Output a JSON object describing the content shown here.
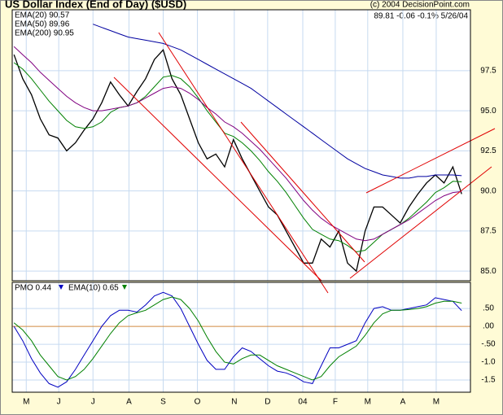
{
  "chart_data": [
    {
      "type": "line",
      "title": "US Dollar Index (End of Day) ($USD)",
      "source": "(c) 2004 DecisionPoint.com",
      "header": "89.81  -0.06  -0.1%  5/26/04",
      "xlim": [
        -0.2,
        52
      ],
      "ylim": [
        84.4,
        101.3
      ],
      "yticks": [
        97.5,
        {
          "value": 95,
          "label": "95.0"
        },
        92.5,
        {
          "value": 90,
          "label": "90.0"
        },
        87.5,
        {
          "value": 85,
          "label": "85.0"
        }
      ],
      "grid": true,
      "series": [
        {
          "color": "#000000",
          "values": [
            98.5,
            97.0,
            96.0,
            94.5,
            93.5,
            93.3,
            92.5,
            93.0,
            93.8,
            94.5,
            95.5,
            96.8,
            96.0,
            95.3,
            96.2,
            97.0,
            98.2,
            98.8,
            97.0,
            96.0,
            94.5,
            93.0,
            92.0,
            92.3,
            91.5,
            93.2,
            92.0,
            91.0,
            90.0,
            89.0,
            88.5,
            87.5,
            86.5,
            85.5,
            85.5,
            87.0,
            86.5,
            87.5,
            85.5,
            85.0,
            87.5,
            89.0,
            89.0,
            88.5,
            88.0,
            89.0,
            89.8,
            90.5,
            91.0,
            90.5,
            91.5,
            89.81
          ]
        },
        {
          "name": "EMA(20) 90.57",
          "color": "#008000",
          "values": [
            98.0,
            97.6,
            97.0,
            96.3,
            95.6,
            95.0,
            94.4,
            94.0,
            93.9,
            94.0,
            94.3,
            94.9,
            95.2,
            95.3,
            95.5,
            95.9,
            96.5,
            97.1,
            97.2,
            97.0,
            96.5,
            95.8,
            95.0,
            94.3,
            93.6,
            93.4,
            93.0,
            92.5,
            91.9,
            91.2,
            90.6,
            89.9,
            89.1,
            88.3,
            87.6,
            87.3,
            87.0,
            86.9,
            86.6,
            86.2,
            86.3,
            86.8,
            87.3,
            87.6,
            87.9,
            88.3,
            88.8,
            89.3,
            89.9,
            90.2,
            90.6,
            90.57
          ]
        },
        {
          "name": "EMA(50) 89.96",
          "color": "#800080",
          "values": [
            99.0,
            98.5,
            98.0,
            97.4,
            96.9,
            96.4,
            95.9,
            95.5,
            95.2,
            95.0,
            95.0,
            95.1,
            95.2,
            95.3,
            95.5,
            95.8,
            96.1,
            96.4,
            96.5,
            96.4,
            96.1,
            95.7,
            95.2,
            94.8,
            94.3,
            94.0,
            93.6,
            93.1,
            92.6,
            92.0,
            91.4,
            90.8,
            90.1,
            89.4,
            88.8,
            88.3,
            87.9,
            87.6,
            87.3,
            87.0,
            86.9,
            87.0,
            87.3,
            87.6,
            87.9,
            88.2,
            88.6,
            89.0,
            89.4,
            89.7,
            89.9,
            89.96
          ]
        },
        {
          "name": "EMA(200) 90.95",
          "color": "#0000a0",
          "values": [
            null,
            null,
            null,
            null,
            null,
            null,
            null,
            null,
            null,
            100.4,
            100.2,
            100.0,
            99.8,
            99.6,
            99.5,
            99.4,
            99.3,
            99.2,
            99.0,
            98.8,
            98.5,
            98.2,
            97.9,
            97.6,
            97.3,
            97.0,
            96.7,
            96.4,
            96.0,
            95.6,
            95.2,
            94.8,
            94.4,
            94.0,
            93.6,
            93.2,
            92.8,
            92.4,
            92.0,
            91.7,
            91.4,
            91.2,
            91.0,
            90.9,
            90.8,
            90.8,
            90.9,
            90.9,
            91.0,
            91.0,
            91.0,
            90.95
          ]
        }
      ]
    },
    {
      "type": "line",
      "xlim": [
        -0.2,
        52
      ],
      "xticks": [
        {
          "value": 1.4,
          "label": "M"
        },
        {
          "value": 5.1,
          "label": "J"
        },
        {
          "value": 9.0,
          "label": "J"
        },
        {
          "value": 13.1,
          "label": "A"
        },
        {
          "value": 17.0,
          "label": "S"
        },
        {
          "value": 20.9,
          "label": "O"
        },
        {
          "value": 25.1,
          "label": "N"
        },
        {
          "value": 28.9,
          "label": "D"
        },
        {
          "value": 32.9,
          "label": "04"
        },
        {
          "value": 36.6,
          "label": "F"
        },
        {
          "value": 40.3,
          "label": "M"
        },
        {
          "value": 44.3,
          "label": "A"
        },
        {
          "value": 48.1,
          "label": "M"
        }
      ],
      "ylim": [
        -1.84,
        1.23
      ],
      "yticks": [
        {
          "value": 0.5,
          "label": ".50"
        },
        {
          "value": 0,
          "label": ".00"
        },
        {
          "value": -0.5,
          "label": "-.50"
        },
        {
          "value": -1,
          "label": "-1.0"
        },
        {
          "value": -1.5,
          "label": "-1.5"
        }
      ],
      "grid": true,
      "series": [
        {
          "name": "PMO  0.44",
          "color": "#0000c0",
          "values": [
            0.0,
            -0.4,
            -0.9,
            -1.3,
            -1.6,
            -1.7,
            -1.55,
            -1.2,
            -0.8,
            -0.4,
            0.0,
            0.3,
            0.45,
            0.45,
            0.4,
            0.6,
            0.85,
            0.95,
            0.85,
            0.5,
            0.0,
            -0.5,
            -0.95,
            -1.2,
            -1.2,
            -0.85,
            -0.6,
            -0.7,
            -0.9,
            -1.1,
            -1.25,
            -1.3,
            -1.4,
            -1.55,
            -1.6,
            -1.1,
            -0.6,
            -0.6,
            -0.5,
            -0.4,
            0.1,
            0.5,
            0.55,
            0.45,
            0.45,
            0.5,
            0.55,
            0.6,
            0.8,
            0.75,
            0.7,
            0.44
          ]
        },
        {
          "name": "EMA(10)  0.65",
          "color": "#008000",
          "values": [
            0.1,
            -0.1,
            -0.4,
            -0.8,
            -1.1,
            -1.4,
            -1.5,
            -1.4,
            -1.2,
            -0.9,
            -0.55,
            -0.2,
            0.1,
            0.3,
            0.38,
            0.45,
            0.6,
            0.75,
            0.82,
            0.75,
            0.5,
            0.15,
            -0.3,
            -0.7,
            -1.0,
            -1.05,
            -0.9,
            -0.8,
            -0.8,
            -0.95,
            -1.1,
            -1.2,
            -1.3,
            -1.4,
            -1.5,
            -1.4,
            -1.1,
            -0.85,
            -0.7,
            -0.55,
            -0.25,
            0.1,
            0.35,
            0.45,
            0.45,
            0.47,
            0.5,
            0.55,
            0.65,
            0.7,
            0.7,
            0.65
          ]
        }
      ]
    }
  ]
}
